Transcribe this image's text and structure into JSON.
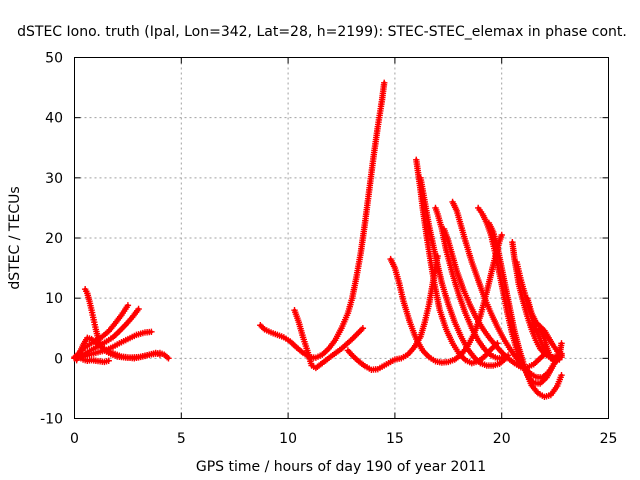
{
  "chart_data": {
    "type": "scatter",
    "title": "dSTEC Iono. truth (Ipal, Lon=342, Lat=28, h=2199): STEC-STEC_elemax in phase cont.",
    "xlabel": "GPS time / hours of day 190 of year 2011",
    "ylabel": "dSTEC  / TECUs",
    "xlim": [
      0,
      25
    ],
    "ylim": [
      -10,
      50
    ],
    "xticks": [
      0,
      5,
      10,
      15,
      20,
      25
    ],
    "yticks": [
      -10,
      0,
      10,
      20,
      30,
      40,
      50
    ],
    "xtick_labels": [
      "0",
      "5",
      "10",
      "15",
      "20",
      "25"
    ],
    "ytick_labels": [
      "-10",
      "0",
      "10",
      "20",
      "30",
      "40",
      "50"
    ],
    "grid": true,
    "marker": "+",
    "series_color": "#ff0000",
    "series": [
      {
        "x": [
          0.0,
          0.2,
          0.4,
          0.7,
          1.0,
          1.3,
          1.6,
          1.9,
          2.2,
          2.5
        ],
        "y": [
          0.2,
          0.8,
          1.6,
          2.3,
          3.0,
          3.6,
          4.5,
          5.8,
          7.2,
          8.8
        ]
      },
      {
        "x": [
          0.0,
          0.3,
          0.6,
          0.9,
          1.2,
          1.5,
          1.8,
          2.1,
          2.4,
          2.7,
          3.0
        ],
        "y": [
          0.0,
          0.4,
          1.0,
          1.6,
          2.2,
          2.8,
          3.5,
          4.5,
          5.6,
          6.8,
          8.2
        ]
      },
      {
        "x": [
          0.0,
          0.3,
          0.6,
          0.9,
          1.2,
          1.5,
          1.8,
          2.1,
          2.5,
          2.9,
          3.3,
          3.6
        ],
        "y": [
          0.0,
          0.2,
          0.5,
          0.8,
          1.1,
          1.4,
          1.9,
          2.5,
          3.2,
          3.9,
          4.3,
          4.4
        ]
      },
      {
        "x": [
          0.5,
          0.6,
          0.7,
          0.8,
          0.9,
          1.0,
          1.1,
          1.2,
          1.4,
          1.7,
          2.0,
          2.5,
          3.0,
          3.5,
          4.0,
          4.2,
          4.4
        ],
        "y": [
          11.5,
          10.8,
          9.5,
          8.0,
          6.4,
          4.8,
          3.4,
          2.3,
          1.3,
          0.7,
          0.3,
          0.1,
          0.2,
          0.6,
          0.9,
          0.6,
          0.0
        ]
      },
      {
        "x": [
          0.1,
          0.2,
          0.4,
          0.6,
          0.8,
          1.0,
          1.3,
          1.7,
          2.2,
          2.8,
          3.3,
          3.8,
          4.0
        ],
        "y": [
          -0.3,
          0.6,
          2.2,
          3.4,
          3.2,
          2.6,
          1.8,
          1.0,
          0.3,
          0.0,
          0.4,
          0.9,
          0.6
        ]
      },
      {
        "x": [
          0.2,
          0.4,
          0.6,
          0.8,
          1.0,
          1.2,
          1.4,
          1.6
        ],
        "y": [
          0.2,
          -0.2,
          -0.4,
          -0.3,
          -0.4,
          -0.5,
          -0.6,
          -0.4
        ]
      },
      {
        "x": [
          8.7,
          8.9,
          9.2,
          9.5,
          9.8,
          10.1,
          10.4,
          10.7,
          11.0,
          11.3,
          11.6,
          11.9,
          12.2,
          12.5,
          12.8,
          13.0,
          13.2,
          13.4,
          13.6,
          13.8,
          14.0,
          14.2,
          14.4,
          14.5
        ],
        "y": [
          5.5,
          4.8,
          4.3,
          3.9,
          3.5,
          2.8,
          1.8,
          0.9,
          0.2,
          0.1,
          0.6,
          1.6,
          3.0,
          5.0,
          7.5,
          10.0,
          13.5,
          17.5,
          22.5,
          28.0,
          33.5,
          38.5,
          43.0,
          45.8
        ]
      },
      {
        "x": [
          10.3,
          10.5,
          10.7,
          10.9,
          11.1,
          11.3,
          11.6,
          12.0,
          12.5,
          13.0,
          13.5
        ],
        "y": [
          8.0,
          6.0,
          3.5,
          1.3,
          -1.2,
          -1.6,
          -0.8,
          0.3,
          1.6,
          3.2,
          5.0
        ]
      },
      {
        "x": [
          12.8,
          13.0,
          13.3,
          13.6,
          13.9,
          14.2,
          14.5,
          14.8,
          15.0,
          15.3,
          15.6,
          15.9,
          16.2,
          16.4,
          16.6,
          16.8,
          17.0
        ],
        "y": [
          1.3,
          0.5,
          -0.5,
          -1.3,
          -1.9,
          -1.8,
          -1.2,
          -0.6,
          -0.2,
          0.0,
          0.6,
          1.8,
          3.6,
          6.0,
          9.0,
          13.0,
          17.0
        ]
      },
      {
        "x": [
          14.8,
          15.0,
          15.2,
          15.4,
          15.7,
          16.0,
          16.3,
          16.6,
          16.9,
          17.2,
          17.5,
          17.8,
          18.1,
          18.4,
          18.7,
          19.0,
          19.3,
          19.6,
          19.9,
          20.0
        ],
        "y": [
          16.5,
          15.0,
          12.5,
          9.5,
          6.0,
          3.2,
          1.3,
          0.2,
          -0.5,
          -0.7,
          -0.6,
          -0.2,
          0.6,
          2.0,
          4.0,
          7.0,
          11.0,
          15.5,
          19.5,
          20.5
        ]
      },
      {
        "x": [
          16.0,
          16.1,
          16.2,
          16.3,
          16.5,
          16.7,
          16.9,
          17.1,
          17.4,
          17.7,
          18.0,
          18.3,
          18.6,
          18.9,
          19.2,
          19.5,
          19.8
        ],
        "y": [
          33.0,
          30.5,
          28.0,
          25.0,
          20.0,
          15.5,
          11.5,
          8.0,
          4.8,
          2.5,
          0.8,
          -0.3,
          -0.8,
          -0.5,
          0.3,
          1.5,
          2.5
        ]
      },
      {
        "x": [
          16.2,
          16.4,
          16.6,
          16.9,
          17.2,
          17.5,
          17.8,
          18.1,
          18.4,
          18.7,
          19.0,
          19.3,
          19.6,
          19.9,
          20.2
        ],
        "y": [
          30.0,
          26.0,
          22.0,
          17.0,
          12.5,
          9.0,
          6.0,
          3.6,
          1.6,
          0.2,
          -0.8,
          -1.2,
          -1.2,
          -0.9,
          0.0
        ]
      },
      {
        "x": [
          16.9,
          17.0,
          17.2,
          17.4,
          17.7,
          18.0,
          18.3,
          18.6,
          18.9,
          19.2,
          19.5,
          19.8,
          20.1,
          20.3
        ],
        "y": [
          25.0,
          24.0,
          21.5,
          18.0,
          14.0,
          10.5,
          7.5,
          5.0,
          3.0,
          1.5,
          0.5,
          0.0,
          0.1,
          0.5
        ]
      },
      {
        "x": [
          17.3,
          17.5,
          17.7,
          17.9,
          18.2,
          18.5,
          18.8,
          19.1,
          19.4,
          19.7,
          20.0,
          20.3,
          20.6,
          20.9,
          21.2,
          21.5,
          21.8,
          22.1
        ],
        "y": [
          21.5,
          19.5,
          17.0,
          14.5,
          11.5,
          9.0,
          6.8,
          5.0,
          3.5,
          2.2,
          1.0,
          0.0,
          -0.8,
          -1.5,
          -1.5,
          -1.0,
          0.0,
          1.0
        ]
      },
      {
        "x": [
          17.7,
          17.9,
          18.1,
          18.3,
          18.6,
          18.9,
          19.2,
          19.5,
          19.8,
          20.1,
          20.4,
          20.7,
          21.0,
          21.3,
          21.6,
          21.9,
          22.2,
          22.5,
          22.7
        ],
        "y": [
          26.0,
          24.5,
          22.0,
          19.5,
          16.0,
          13.0,
          10.0,
          7.5,
          5.2,
          3.2,
          1.5,
          0.0,
          -1.3,
          -2.4,
          -3.1,
          -3.2,
          -2.3,
          -0.6,
          0.8
        ]
      },
      {
        "x": [
          18.9,
          19.1,
          19.3,
          19.5,
          19.7,
          19.9,
          20.1,
          20.3,
          20.5,
          20.7,
          20.9,
          21.1,
          21.3,
          21.5,
          21.8,
          22.1,
          22.4,
          22.7
        ],
        "y": [
          25.0,
          24.0,
          22.5,
          20.5,
          17.5,
          14.0,
          10.5,
          7.0,
          4.0,
          1.5,
          -0.5,
          -2.0,
          -3.3,
          -4.1,
          -4.2,
          -3.2,
          -1.3,
          0.8
        ]
      },
      {
        "x": [
          19.4,
          19.6,
          19.8,
          20.0,
          20.2,
          20.4,
          20.6,
          20.8,
          21.0,
          21.2,
          21.4,
          21.7,
          22.0,
          22.3,
          22.6,
          22.8
        ],
        "y": [
          22.5,
          21.0,
          18.5,
          15.0,
          11.5,
          8.0,
          4.5,
          1.8,
          -0.6,
          -2.8,
          -4.5,
          -5.8,
          -6.4,
          -6.1,
          -4.6,
          -2.8
        ]
      },
      {
        "x": [
          20.5,
          20.6,
          20.7,
          20.8,
          21.0,
          21.2,
          21.4,
          21.6,
          21.8,
          22.0,
          22.2,
          22.4,
          22.6,
          22.8
        ],
        "y": [
          19.3,
          16.5,
          14.5,
          12.3,
          9.5,
          7.0,
          4.8,
          3.0,
          1.6,
          0.8,
          0.3,
          0.2,
          0.4,
          0.8
        ]
      },
      {
        "x": [
          20.7,
          20.9,
          21.1,
          21.3,
          21.5,
          21.7,
          21.9,
          22.1,
          22.3,
          22.5,
          22.7
        ],
        "y": [
          16.0,
          13.0,
          10.5,
          8.0,
          6.0,
          4.0,
          2.3,
          1.0,
          0.0,
          -0.5,
          -0.2
        ]
      },
      {
        "x": [
          21.2,
          21.4,
          21.6,
          21.8,
          22.0,
          22.2,
          22.4,
          22.6,
          22.8
        ],
        "y": [
          10.0,
          7.5,
          6.0,
          5.3,
          4.6,
          3.4,
          2.2,
          1.2,
          0.5
        ]
      },
      {
        "x": [
          21.8,
          21.9,
          22.0,
          22.1,
          22.2,
          22.3,
          22.4,
          22.6,
          22.8
        ],
        "y": [
          4.8,
          4.2,
          3.3,
          2.0,
          1.0,
          0.2,
          -0.3,
          -0.3,
          0.2
        ]
      },
      {
        "x": [
          21.9,
          22.1,
          22.3,
          22.5,
          22.7,
          22.8
        ],
        "y": [
          1.5,
          0.7,
          0.2,
          -0.1,
          0.4,
          2.5
        ]
      }
    ]
  }
}
